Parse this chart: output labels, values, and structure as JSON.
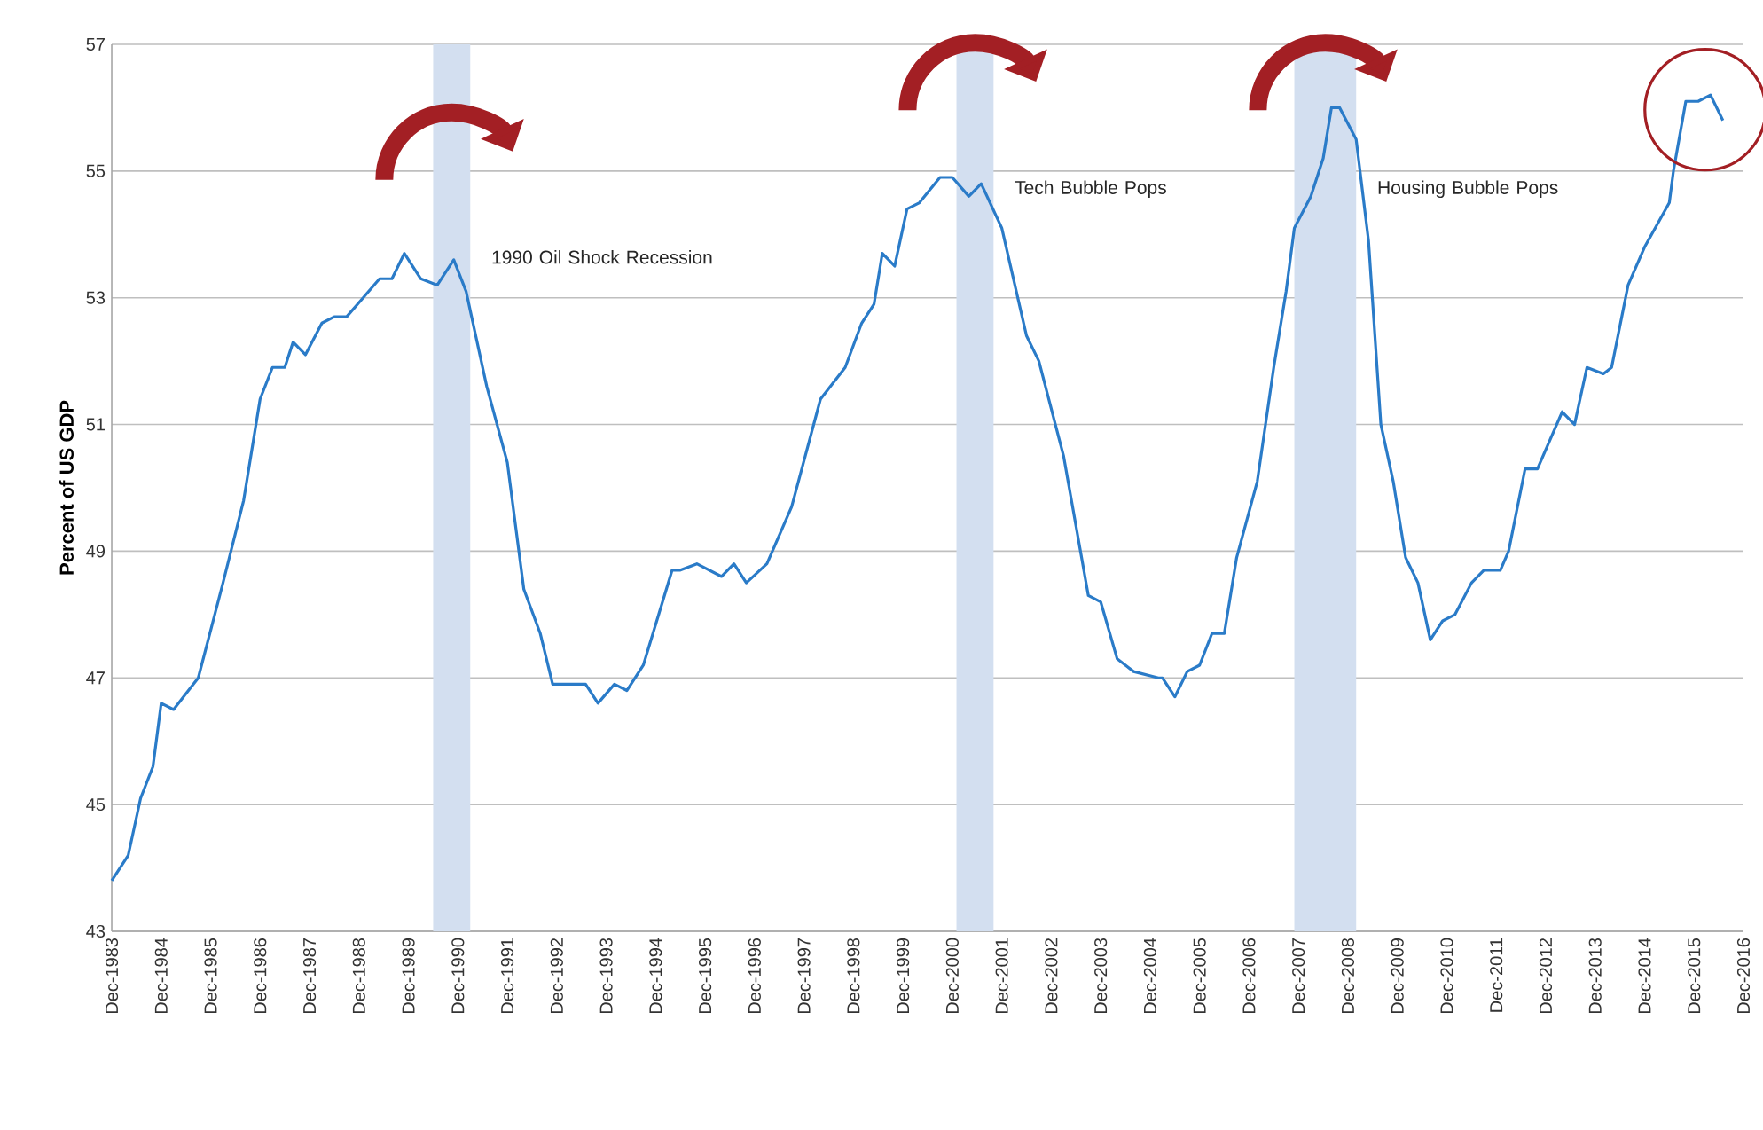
{
  "chart_data": {
    "type": "line",
    "ylabel": "Percent of US GDP",
    "x": [
      "1983-12",
      "1984-04",
      "1984-07",
      "1984-10",
      "1984-12",
      "1985-03",
      "1985-09",
      "1986-01",
      "1986-03",
      "1986-08",
      "1986-12",
      "1987-03",
      "1987-06",
      "1987-08",
      "1987-11",
      "1988-03",
      "1988-06",
      "1988-09",
      "1989-01",
      "1989-05",
      "1989-08",
      "1989-11",
      "1990-03",
      "1990-07",
      "1990-11",
      "1991-02",
      "1991-07",
      "1991-12",
      "1992-04",
      "1992-08",
      "1992-11",
      "1993-03",
      "1993-07",
      "1993-10",
      "1994-02",
      "1994-05",
      "1994-09",
      "1995-04",
      "1995-06",
      "1995-10",
      "1996-04",
      "1996-07",
      "1996-10",
      "1997-03",
      "1997-09",
      "1998-04",
      "1998-10",
      "1999-02",
      "1999-05",
      "1999-07",
      "1999-10",
      "2000-01",
      "2000-04",
      "2000-09",
      "2000-12",
      "2001-04",
      "2001-07",
      "2001-12",
      "2002-06",
      "2002-09",
      "2003-03",
      "2003-09",
      "2003-12",
      "2004-04",
      "2004-08",
      "2005-02",
      "2005-03",
      "2005-06",
      "2005-09",
      "2005-12",
      "2006-03",
      "2006-06",
      "2006-09",
      "2007-02",
      "2007-06",
      "2007-09",
      "2007-11",
      "2008-03",
      "2008-06",
      "2008-08",
      "2008-10",
      "2009-02",
      "2009-05",
      "2009-08",
      "2009-11",
      "2010-02",
      "2010-05",
      "2010-08",
      "2010-11",
      "2011-02",
      "2011-06",
      "2011-09",
      "2012-01",
      "2012-03",
      "2012-07",
      "2012-10",
      "2013-04",
      "2013-07",
      "2013-10",
      "2014-02",
      "2014-04",
      "2014-08",
      "2014-12",
      "2015-06",
      "2015-07",
      "2015-10",
      "2016-01",
      "2016-04",
      "2016-07"
    ],
    "values": [
      43.8,
      44.2,
      45.1,
      45.6,
      46.6,
      46.5,
      47.0,
      48.0,
      48.5,
      49.8,
      51.4,
      51.9,
      51.9,
      52.3,
      52.1,
      52.6,
      52.7,
      52.7,
      53.0,
      53.3,
      53.3,
      53.7,
      53.3,
      53.2,
      53.6,
      53.1,
      51.6,
      50.4,
      48.4,
      47.7,
      46.9,
      46.9,
      46.9,
      46.6,
      46.9,
      46.8,
      47.2,
      48.7,
      48.7,
      48.8,
      48.6,
      48.8,
      48.5,
      48.8,
      49.7,
      51.4,
      51.9,
      52.6,
      52.9,
      53.7,
      53.5,
      54.4,
      54.5,
      54.9,
      54.9,
      54.6,
      54.8,
      54.1,
      52.4,
      52.0,
      50.5,
      48.3,
      48.2,
      47.3,
      47.1,
      47.0,
      47.0,
      46.7,
      47.1,
      47.2,
      47.7,
      47.7,
      48.9,
      50.1,
      51.9,
      53.1,
      54.1,
      54.6,
      55.2,
      56.0,
      56.0,
      55.5,
      53.9,
      51.0,
      50.1,
      48.9,
      48.5,
      47.6,
      47.9,
      48.0,
      48.5,
      48.7,
      48.7,
      49.0,
      50.3,
      50.3,
      51.2,
      51.0,
      51.9,
      51.8,
      51.9,
      53.2,
      53.8,
      54.5,
      55.0,
      56.1,
      56.1,
      56.2,
      55.8
    ],
    "color": "#2a7bc8",
    "xlim": [
      "1983-12",
      "2016-12"
    ],
    "xticks": [
      {
        "value": "1983-12",
        "label": "Dec-1983"
      },
      {
        "value": "1984-12",
        "label": "Dec-1984"
      },
      {
        "value": "1985-12",
        "label": "Dec-1985"
      },
      {
        "value": "1986-12",
        "label": "Dec-1986"
      },
      {
        "value": "1987-12",
        "label": "Dec-1987"
      },
      {
        "value": "1988-12",
        "label": "Dec-1988"
      },
      {
        "value": "1989-12",
        "label": "Dec-1989"
      },
      {
        "value": "1990-12",
        "label": "Dec-1990"
      },
      {
        "value": "1991-12",
        "label": "Dec-1991"
      },
      {
        "value": "1992-12",
        "label": "Dec-1992"
      },
      {
        "value": "1993-12",
        "label": "Dec-1993"
      },
      {
        "value": "1994-12",
        "label": "Dec-1994"
      },
      {
        "value": "1995-12",
        "label": "Dec-1995"
      },
      {
        "value": "1996-12",
        "label": "Dec-1996"
      },
      {
        "value": "1997-12",
        "label": "Dec-1997"
      },
      {
        "value": "1998-12",
        "label": "Dec-1998"
      },
      {
        "value": "1999-12",
        "label": "Dec-1999"
      },
      {
        "value": "2000-12",
        "label": "Dec-2000"
      },
      {
        "value": "2001-12",
        "label": "Dec-2001"
      },
      {
        "value": "2002-12",
        "label": "Dec-2002"
      },
      {
        "value": "2003-12",
        "label": "Dec-2003"
      },
      {
        "value": "2004-12",
        "label": "Dec-2004"
      },
      {
        "value": "2005-12",
        "label": "Dec-2005"
      },
      {
        "value": "2006-12",
        "label": "Dec-2006"
      },
      {
        "value": "2007-12",
        "label": "Dec-2007"
      },
      {
        "value": "2008-12",
        "label": "Dec-2008"
      },
      {
        "value": "2009-12",
        "label": "Dec-2009"
      },
      {
        "value": "2010-12",
        "label": "Dec-2010"
      },
      {
        "value": "2011-12",
        "label": "Dec-2011"
      },
      {
        "value": "2012-12",
        "label": "Dec-2012"
      },
      {
        "value": "2013-12",
        "label": "Dec-2013"
      },
      {
        "value": "2014-12",
        "label": "Dec-2014"
      },
      {
        "value": "2015-12",
        "label": "Dec-2015"
      },
      {
        "value": "2016-12",
        "label": "Dec-2016"
      }
    ],
    "ylim": [
      43,
      57
    ],
    "yticks": [
      43,
      45,
      47,
      49,
      51,
      53,
      55,
      57
    ],
    "grid": "y",
    "bands": [
      {
        "axis": "x",
        "from": "1990-06",
        "to": "1991-03",
        "label": "1990 Oil Shock Recession",
        "color": "#d3dff0"
      },
      {
        "axis": "x",
        "from": "2001-01",
        "to": "2001-10",
        "label": "Tech Bubble Pops",
        "color": "#d3dff0"
      },
      {
        "axis": "x",
        "from": "2007-11",
        "to": "2009-02",
        "label": "Housing Bubble Pops",
        "color": "#d3dff0"
      }
    ]
  }
}
